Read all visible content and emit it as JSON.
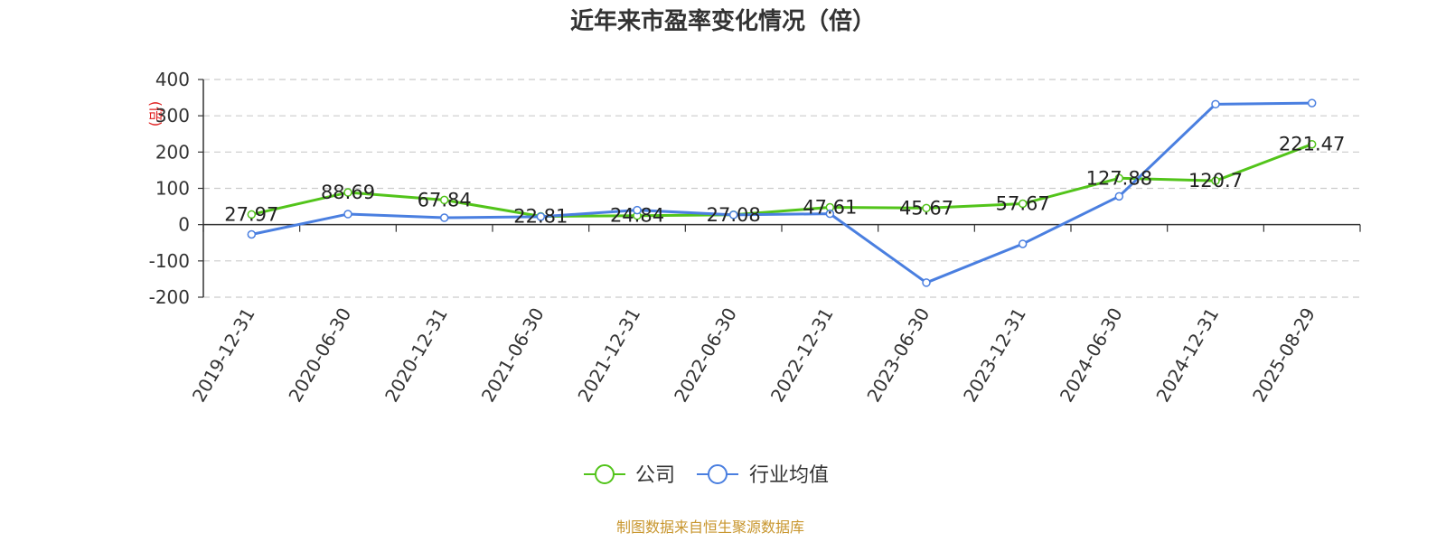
{
  "chart_data": {
    "type": "line",
    "title": "近年来市盈率变化情况（倍）",
    "ylabel": "(倍)",
    "ylim": [
      -200,
      400
    ],
    "yticks": [
      400,
      300,
      200,
      100,
      0,
      -100,
      -200
    ],
    "grid": true,
    "legend_position": "bottom-center",
    "categories": [
      "2019-12-31",
      "2020-06-30",
      "2020-12-31",
      "2021-06-30",
      "2021-12-31",
      "2022-06-30",
      "2022-12-31",
      "2023-06-30",
      "2023-12-31",
      "2024-06-30",
      "2024-12-31",
      "2025-08-29"
    ],
    "series": [
      {
        "name": "公司",
        "color": "#52c41a",
        "values": [
          27.97,
          88.69,
          67.84,
          22.81,
          24.84,
          27.08,
          47.61,
          45.67,
          57.67,
          127.88,
          120.7,
          221.47
        ],
        "labels": [
          "27.97",
          "88.69",
          "67.84",
          "22.81",
          "24.84",
          "27.08",
          "47.61",
          "45.67",
          "57.67",
          "127.88",
          "120.7",
          "221.47"
        ]
      },
      {
        "name": "行业均值",
        "color": "#4a7fe0",
        "values": [
          -27,
          29,
          19,
          22,
          40,
          27,
          30,
          -160,
          -53,
          78,
          332,
          335
        ]
      }
    ]
  },
  "source": "制图数据来自恒生聚源数据库"
}
